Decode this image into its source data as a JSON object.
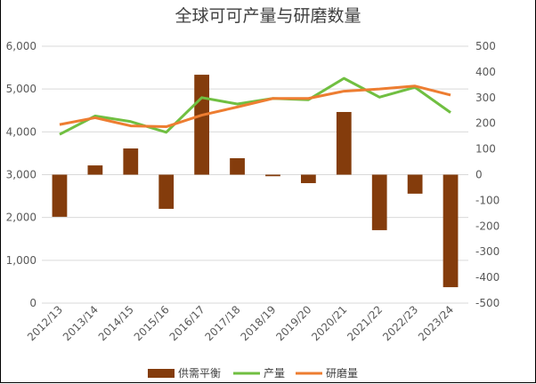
{
  "chart_data": {
    "type": "bar+line",
    "title": "全球可可产量与研磨数量",
    "categories": [
      "2012/13",
      "2013/14",
      "2014/15",
      "2015/16",
      "2016/17",
      "2017/18",
      "2018/19",
      "2019/20",
      "2020/21",
      "2021/22",
      "2022/23",
      "2023/24"
    ],
    "left_axis": {
      "range": [
        0,
        6000
      ],
      "ticks": [
        "0",
        "1,000",
        "2,000",
        "3,000",
        "4,000",
        "5,000",
        "6,000"
      ]
    },
    "right_axis": {
      "range": [
        -500,
        500
      ],
      "ticks": [
        "-500",
        "-400",
        "-300",
        "-200",
        "-100",
        "0",
        "100",
        "200",
        "300",
        "400",
        "500"
      ]
    },
    "grid": true,
    "legend_position": "bottom",
    "series": [
      {
        "name": "供需平衡",
        "type": "bar",
        "axis": "right",
        "color": "#843C0C",
        "values": [
          -164,
          36,
          102,
          -133,
          389,
          64,
          -6,
          -33,
          244,
          -216,
          -74,
          -438
        ]
      },
      {
        "name": "产量",
        "type": "line",
        "axis": "left",
        "color": "#70BF41",
        "values": [
          3940,
          4370,
          4240,
          3990,
          4800,
          4650,
          4780,
          4750,
          5250,
          4810,
          5040,
          4450
        ]
      },
      {
        "name": "研磨量",
        "type": "line",
        "axis": "left",
        "color": "#ED7D31",
        "values": [
          4170,
          4330,
          4140,
          4120,
          4390,
          4580,
          4780,
          4780,
          4950,
          5000,
          5070,
          4860
        ]
      }
    ]
  }
}
